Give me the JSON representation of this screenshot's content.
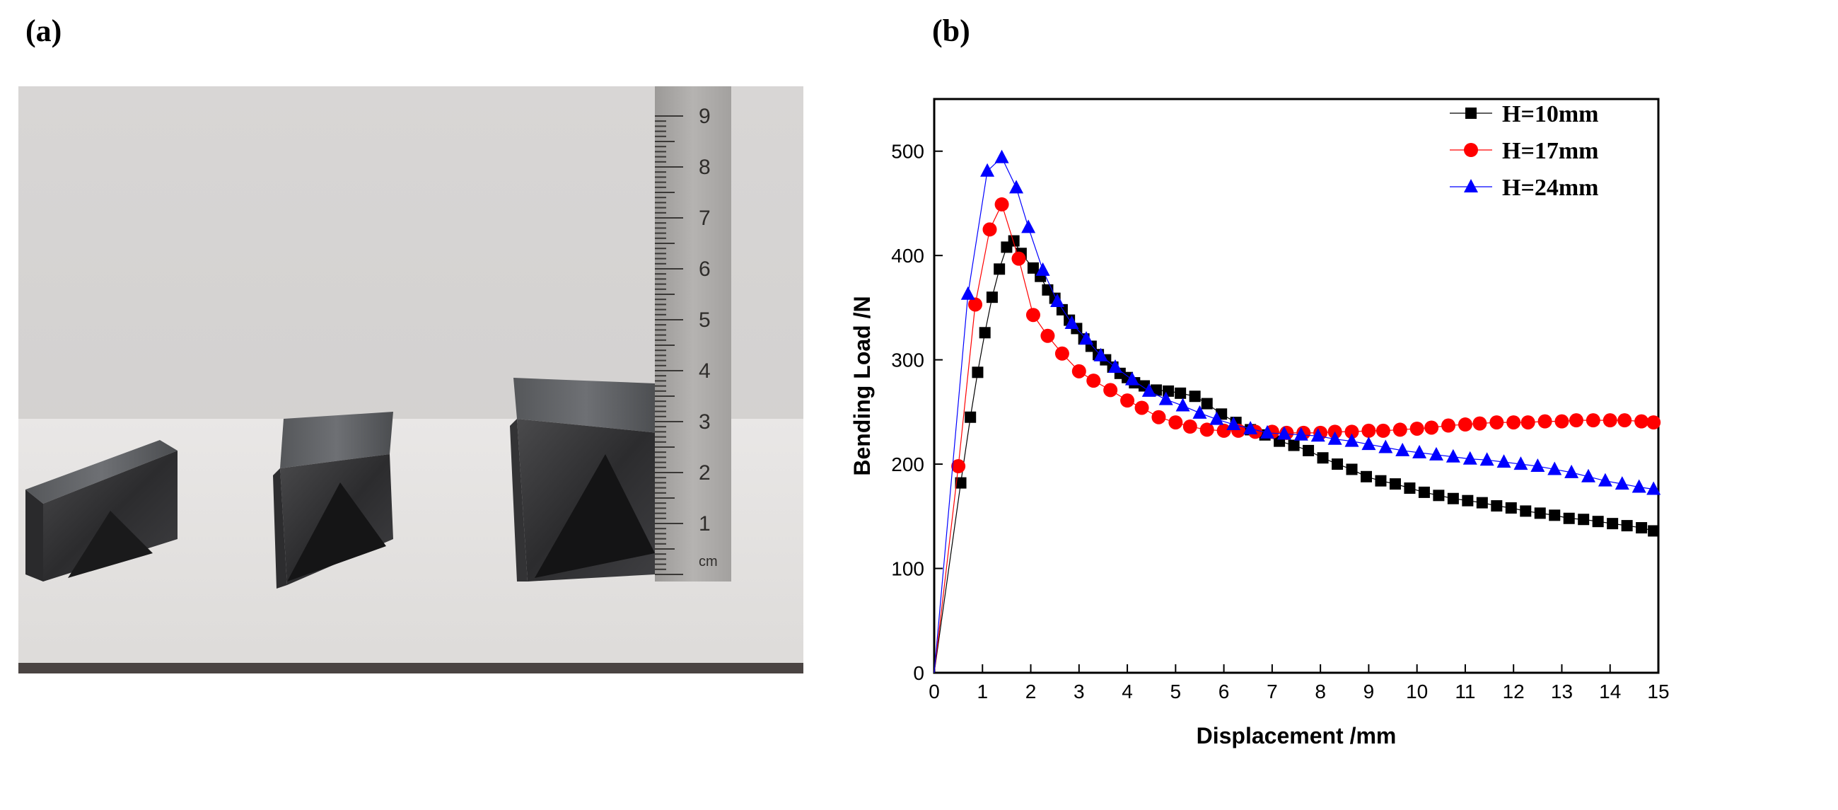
{
  "panels": {
    "a_label": "(a)",
    "b_label": "(b)"
  },
  "photo": {
    "description_icon": "photo-of-triangular-sandwich-beams",
    "ruler_marks": [
      "1",
      "2",
      "3",
      "4",
      "5",
      "6",
      "7",
      "8",
      "9"
    ],
    "ruler_unit": "cm"
  },
  "chart_data": {
    "type": "scatter",
    "title": "",
    "xlabel": "Displacement /mm",
    "ylabel": "Bending Load /N",
    "xlim": [
      0,
      15
    ],
    "ylim": [
      0,
      550
    ],
    "xticks": [
      0,
      1,
      2,
      3,
      4,
      5,
      6,
      7,
      8,
      9,
      10,
      11,
      12,
      13,
      14,
      15
    ],
    "yticks": [
      0,
      100,
      200,
      300,
      400,
      500
    ],
    "grid": false,
    "legend_position": "top-right",
    "series": [
      {
        "name": "H=10mm",
        "color": "#000000",
        "marker": "square",
        "x": [
          0.55,
          0.75,
          0.9,
          1.05,
          1.2,
          1.35,
          1.5,
          1.65,
          1.8,
          2.05,
          2.2,
          2.35,
          2.5,
          2.65,
          2.8,
          2.95,
          3.1,
          3.25,
          3.4,
          3.55,
          3.7,
          3.85,
          4.0,
          4.15,
          4.35,
          4.6,
          4.85,
          5.1,
          5.4,
          5.65,
          5.95,
          6.25,
          6.55,
          6.85,
          7.15,
          7.45,
          7.75,
          8.05,
          8.35,
          8.65,
          8.95,
          9.25,
          9.55,
          9.85,
          10.15,
          10.45,
          10.75,
          11.05,
          11.35,
          11.65,
          11.95,
          12.25,
          12.55,
          12.85,
          13.15,
          13.45,
          13.75,
          14.05,
          14.35,
          14.65,
          14.9
        ],
        "y": [
          182,
          245,
          288,
          326,
          360,
          387,
          408,
          414,
          402,
          388,
          380,
          367,
          359,
          348,
          338,
          330,
          320,
          313,
          305,
          300,
          293,
          287,
          283,
          278,
          275,
          271,
          270,
          268,
          265,
          258,
          248,
          240,
          233,
          228,
          222,
          218,
          213,
          206,
          200,
          195,
          188,
          184,
          181,
          177,
          173,
          170,
          167,
          165,
          163,
          160,
          158,
          155,
          153,
          151,
          148,
          147,
          145,
          143,
          141,
          139,
          136
        ]
      },
      {
        "name": "H=17mm",
        "color": "#ff0000",
        "marker": "circle",
        "x": [
          0.5,
          0.85,
          1.15,
          1.4,
          1.75,
          2.05,
          2.35,
          2.65,
          3.0,
          3.3,
          3.65,
          4.0,
          4.3,
          4.65,
          5.0,
          5.3,
          5.65,
          6.0,
          6.3,
          6.65,
          7.0,
          7.3,
          7.65,
          8.0,
          8.3,
          8.65,
          9.0,
          9.3,
          9.65,
          10.0,
          10.3,
          10.65,
          11.0,
          11.3,
          11.65,
          12.0,
          12.3,
          12.65,
          13.0,
          13.3,
          13.65,
          14.0,
          14.3,
          14.65,
          14.9
        ],
        "y": [
          198,
          353,
          425,
          449,
          397,
          343,
          323,
          306,
          289,
          280,
          271,
          261,
          254,
          245,
          240,
          236,
          233,
          232,
          232,
          231,
          231,
          230,
          230,
          230,
          231,
          231,
          232,
          232,
          233,
          234,
          235,
          237,
          238,
          239,
          240,
          240,
          240,
          241,
          241,
          242,
          242,
          242,
          242,
          241,
          240
        ]
      },
      {
        "name": "H=24mm",
        "color": "#0000ff",
        "marker": "triangle",
        "x": [
          0.7,
          1.1,
          1.4,
          1.7,
          1.95,
          2.25,
          2.55,
          2.85,
          3.15,
          3.45,
          3.75,
          4.1,
          4.45,
          4.8,
          5.15,
          5.5,
          5.85,
          6.2,
          6.55,
          6.9,
          7.25,
          7.6,
          7.95,
          8.3,
          8.65,
          9.0,
          9.35,
          9.7,
          10.05,
          10.4,
          10.75,
          11.1,
          11.45,
          11.8,
          12.15,
          12.5,
          12.85,
          13.2,
          13.55,
          13.9,
          14.25,
          14.6,
          14.9
        ],
        "y": [
          363,
          481,
          494,
          465,
          427,
          386,
          356,
          335,
          320,
          304,
          293,
          281,
          270,
          262,
          256,
          249,
          243,
          238,
          234,
          230,
          229,
          228,
          227,
          224,
          222,
          219,
          216,
          213,
          211,
          209,
          207,
          205,
          204,
          202,
          200,
          198,
          195,
          192,
          188,
          184,
          181,
          178,
          176
        ]
      }
    ]
  }
}
